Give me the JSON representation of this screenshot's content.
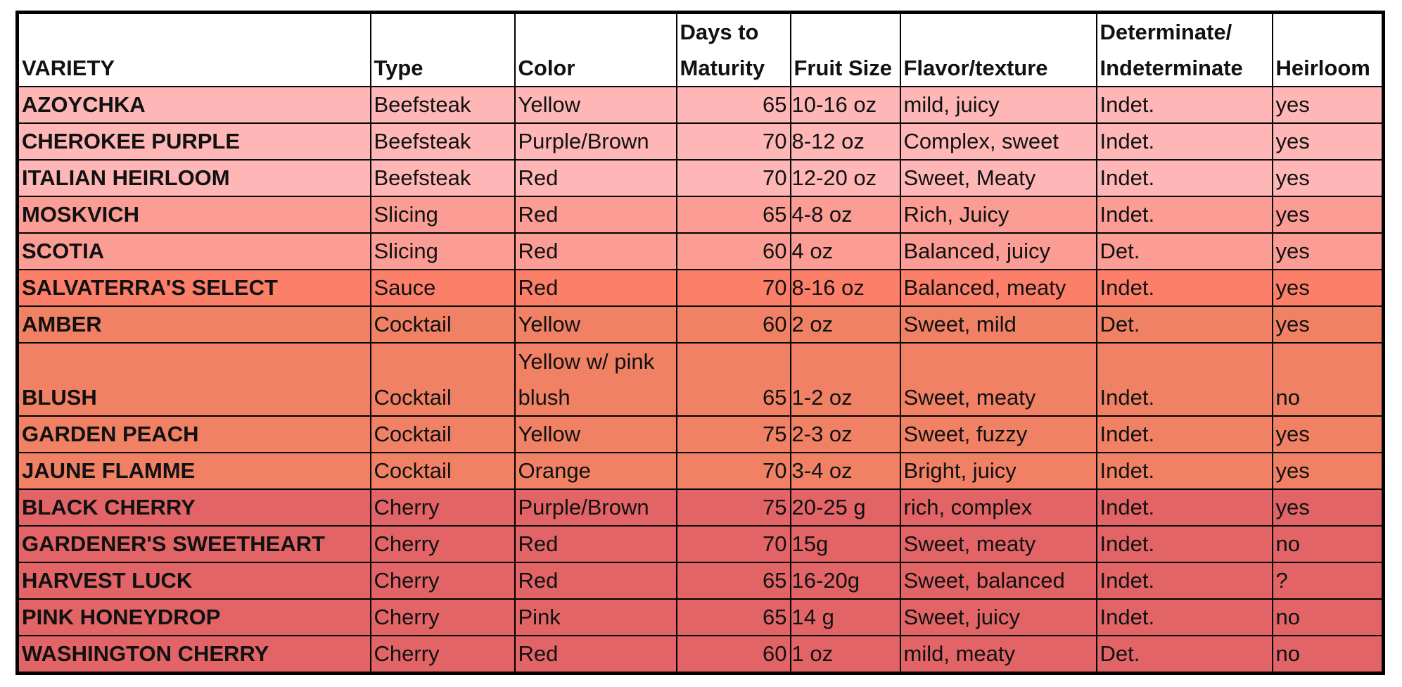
{
  "table": {
    "headers": {
      "variety": "VARIETY",
      "type": "Type",
      "color": "Color",
      "days": "Days to Maturity",
      "size": "Fruit Size",
      "flavor": "Flavor/texture",
      "habit": "Determinate/ Indeterminate",
      "heirloom": "Heirloom"
    },
    "rows": [
      {
        "variety": "AZOYCHKA",
        "type": "Beefsteak",
        "color": "Yellow",
        "days": "65",
        "size": "10-16 oz",
        "flavor": "mild, juicy",
        "habit": "Indet.",
        "heirloom": "yes",
        "fill": "#FFB6B6"
      },
      {
        "variety": "CHEROKEE PURPLE",
        "type": "Beefsteak",
        "color": "Purple/Brown",
        "days": "70",
        "size": "8-12 oz",
        "flavor": "Complex, sweet",
        "habit": "Indet.",
        "heirloom": "yes",
        "fill": "#FFB6B6"
      },
      {
        "variety": "ITALIAN HEIRLOOM",
        "type": "Beefsteak",
        "color": "Red",
        "days": "70",
        "size": "12-20 oz",
        "flavor": "Sweet, Meaty",
        "habit": "Indet.",
        "heirloom": "yes",
        "fill": "#FFB6B6"
      },
      {
        "variety": "MOSKVICH",
        "type": "Slicing",
        "color": "Red",
        "days": "65",
        "size": "4-8 oz",
        "flavor": "Rich, Juicy",
        "habit": "Indet.",
        "heirloom": "yes",
        "fill": "#FC9D95"
      },
      {
        "variety": "SCOTIA",
        "type": "Slicing",
        "color": "Red",
        "days": "60",
        "size": "4 oz",
        "flavor": "Balanced, juicy",
        "habit": "Det.",
        "heirloom": "yes",
        "fill": "#FC9D95"
      },
      {
        "variety": "SALVATERRA'S SELECT",
        "type": "Sauce",
        "color": "Red",
        "days": "70",
        "size": "8-16 oz",
        "flavor": "Balanced, meaty",
        "habit": "Indet.",
        "heirloom": "yes",
        "fill": "#FC7F6A"
      },
      {
        "variety": "AMBER",
        "type": "Cocktail",
        "color": "Yellow",
        "days": "60",
        "size": "2 oz",
        "flavor": "Sweet, mild",
        "habit": "Det.",
        "heirloom": "yes",
        "fill": "#F08165"
      },
      {
        "variety": "BLUSH",
        "type": "Cocktail",
        "color": "Yellow w/ pink blush",
        "days": "65",
        "size": "1-2 oz",
        "flavor": "Sweet, meaty",
        "habit": "Indet.",
        "heirloom": "no",
        "fill": "#F08165",
        "tall": true
      },
      {
        "variety": "GARDEN PEACH",
        "type": "Cocktail",
        "color": "Yellow",
        "days": "75",
        "size": "2-3 oz",
        "flavor": "Sweet, fuzzy",
        "habit": "Indet.",
        "heirloom": "yes",
        "fill": "#F08165"
      },
      {
        "variety": "JAUNE FLAMME",
        "type": "Cocktail",
        "color": "Orange",
        "days": "70",
        "size": "3-4 oz",
        "flavor": "Bright, juicy",
        "habit": "Indet.",
        "heirloom": "yes",
        "fill": "#F08165"
      },
      {
        "variety": "BLACK CHERRY",
        "type": "Cherry",
        "color": "Purple/Brown",
        "days": "75",
        "size": "20-25 g",
        "flavor": "rich, complex",
        "habit": "Indet.",
        "heirloom": "yes",
        "fill": "#E26466"
      },
      {
        "variety": "GARDENER'S SWEETHEART",
        "type": "Cherry",
        "color": "Red",
        "days": "70",
        "size": "15g",
        "flavor": "Sweet, meaty",
        "habit": "Indet.",
        "heirloom": "no",
        "fill": "#E26466"
      },
      {
        "variety": "HARVEST LUCK",
        "type": "Cherry",
        "color": "Red",
        "days": "65",
        "size": "16-20g",
        "flavor": "Sweet, balanced",
        "habit": "Indet.",
        "heirloom": "?",
        "fill": "#E26466"
      },
      {
        "variety": "PINK HONEYDROP",
        "type": "Cherry",
        "color": "Pink",
        "days": "65",
        "size": "14 g",
        "flavor": "Sweet, juicy",
        "habit": "Indet.",
        "heirloom": "no",
        "fill": "#E26466"
      },
      {
        "variety": "WASHINGTON CHERRY",
        "type": "Cherry",
        "color": "Red",
        "days": "60",
        "size": "1 oz",
        "flavor": "mild, meaty",
        "habit": "Det.",
        "heirloom": "no",
        "fill": "#E26466"
      }
    ]
  }
}
